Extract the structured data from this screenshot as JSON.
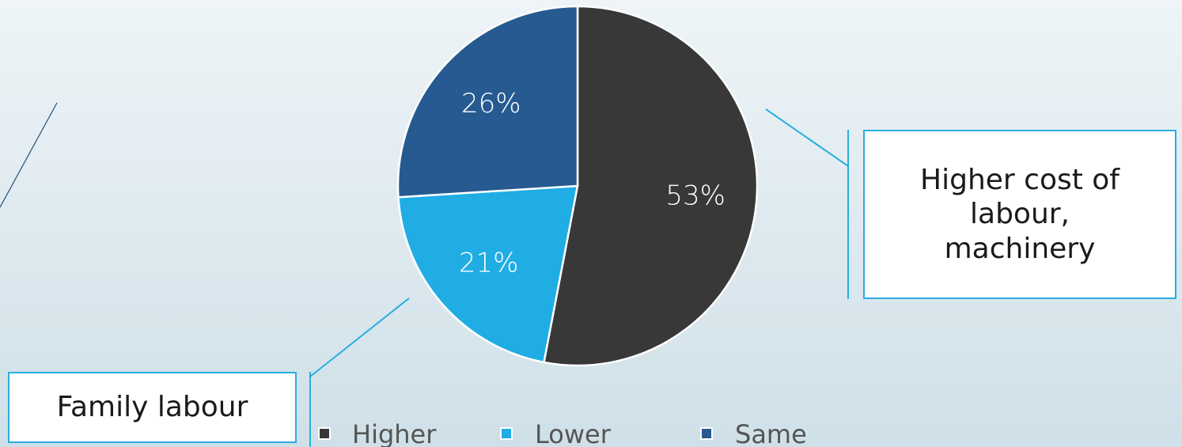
{
  "chart_data": {
    "type": "pie",
    "title": "",
    "categories": [
      "Higher",
      "Lower",
      "Same"
    ],
    "values": [
      53,
      21,
      26
    ],
    "labels": [
      "53%",
      "21%",
      "26%"
    ],
    "colors": [
      "#383838",
      "#1fade3",
      "#265a91"
    ],
    "start_angle_deg": 0,
    "direction": "clockwise",
    "legend_position": "bottom",
    "legend": [
      "Higher",
      "Lower",
      "Same"
    ]
  },
  "callouts": {
    "right_text": "Higher cost of\nlabour,\nmachinery",
    "left_text": "Family labour"
  },
  "theme": {
    "accent": "#29aee0",
    "decor_line": "#1f4f75"
  }
}
